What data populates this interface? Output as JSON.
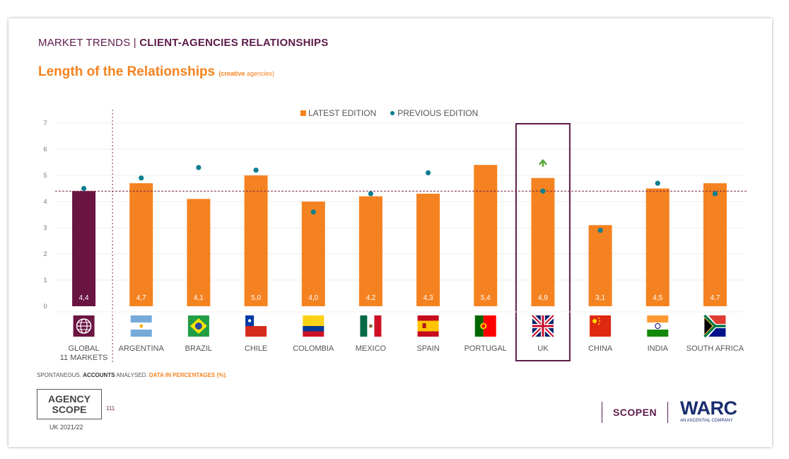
{
  "header": {
    "prefix": "MARKET TRENDS | ",
    "title": "CLIENT-AGENCIES RELATIONSHIPS",
    "subtitle": "Length of the Relationships",
    "subtitle_note_bold": "(creative",
    "subtitle_note": " agencies)"
  },
  "legend": {
    "latest": "LATEST EDITION",
    "previous": "PREVIOUS EDITION"
  },
  "colors": {
    "latest": "#f58220",
    "global": "#6a1442",
    "previous": "#0d7d8f",
    "highlight": "#5e1b4a",
    "arrow": "#5aa83b"
  },
  "chart_data": {
    "type": "bar",
    "title": "Length of the Relationships (creative agencies)",
    "xlabel": "",
    "ylabel": "",
    "ylim": [
      0,
      7
    ],
    "yticks": [
      "0",
      "1",
      "2",
      "3",
      "4",
      "5",
      "6",
      "7"
    ],
    "reference_line": 4.4,
    "highlighted_category": "UK",
    "categories": [
      "GLOBAL\n11 MARKETS",
      "ARGENTINA",
      "BRAZIL",
      "CHILE",
      "COLOMBIA",
      "MEXICO",
      "SPAIN",
      "PORTUGAL",
      "UK",
      "CHINA",
      "INDIA",
      "SOUTH AFRICA"
    ],
    "series": [
      {
        "name": "LATEST EDITION",
        "values": [
          4.4,
          4.7,
          4.1,
          5.0,
          4.0,
          4.2,
          4.3,
          5.4,
          4.9,
          3.1,
          4.5,
          4.7
        ]
      },
      {
        "name": "PREVIOUS EDITION",
        "values": [
          4.5,
          4.9,
          5.3,
          5.2,
          3.6,
          4.3,
          5.1,
          null,
          4.4,
          2.9,
          4.7,
          4.3
        ]
      }
    ],
    "data_labels": [
      "4,4",
      "4,7",
      "4,1",
      "5,0",
      "4,0",
      "4,2",
      "4,3",
      "5,4",
      "4,9",
      "3,1",
      "4,5",
      "4,7"
    ],
    "icons": [
      "globe-icon",
      "flag-argentina-icon",
      "flag-brazil-icon",
      "flag-chile-icon",
      "flag-colombia-icon",
      "flag-mexico-icon",
      "flag-spain-icon",
      "flag-portugal-icon",
      "flag-uk-icon",
      "flag-china-icon",
      "flag-india-icon",
      "flag-south-africa-icon"
    ]
  },
  "footer": {
    "note_1": "SPONTANEOUS. ",
    "note_2": "ACCOUNTS",
    "note_3": " ANALYSED. ",
    "note_4": "DATA IN PERCENTAGES (%).",
    "logo_line1": "AGENCY",
    "logo_line2": "SCOPE",
    "page": "111",
    "edition": "UK 2021/22",
    "scopen": "SCOPEN",
    "warc": "WARC",
    "warc_sub": "AN ASCENTIAL COMPANY"
  }
}
